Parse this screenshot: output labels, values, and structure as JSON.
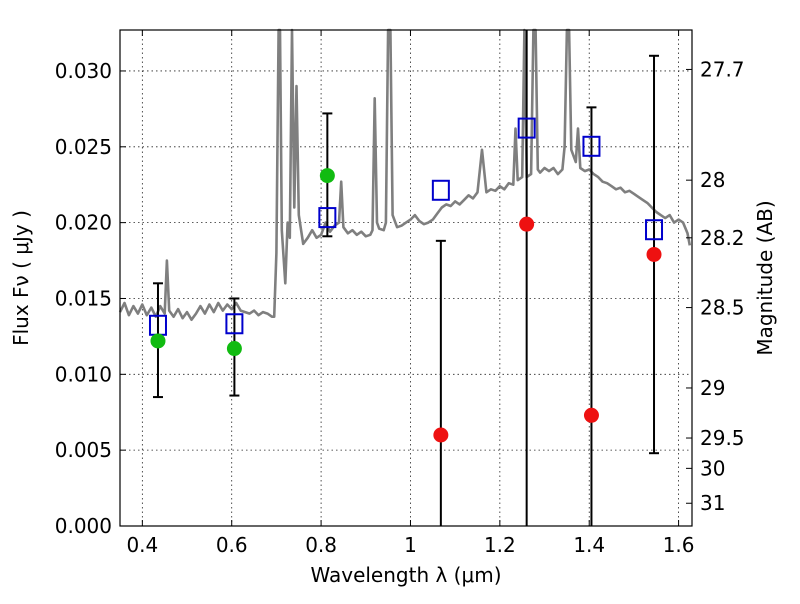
{
  "chart_data": {
    "type": "scatter",
    "xlabel": "Wavelength  λ (μm)",
    "ylabel": "Flux  Fν  ( μJy )",
    "ylabel_right": "Magnitude (AB)",
    "xlim": [
      0.35,
      1.63
    ],
    "ylim": [
      0.0,
      0.0327
    ],
    "grid": true,
    "x_ticks": [
      0.4,
      0.6,
      0.8,
      1.0,
      1.2,
      1.4,
      1.6
    ],
    "x_tick_labels": [
      "0.4",
      "0.6",
      "0.8",
      "1",
      "1.2",
      "1.4",
      "1.6"
    ],
    "y_ticks": [
      0.0,
      0.005,
      0.01,
      0.015,
      0.02,
      0.025,
      0.03
    ],
    "y_tick_labels": [
      "0.000",
      "0.005",
      "0.010",
      "0.015",
      "0.020",
      "0.025",
      "0.030"
    ],
    "right_ticks": [
      {
        "label": "27.7",
        "flux": 0.0301
      },
      {
        "label": "28",
        "flux": 0.0228
      },
      {
        "label": "28.2",
        "flux": 0.019
      },
      {
        "label": "28.5",
        "flux": 0.0144
      },
      {
        "label": "29",
        "flux": 0.0091
      },
      {
        "label": "29.5",
        "flux": 0.0058
      },
      {
        "label": "30",
        "flux": 0.0038
      },
      {
        "label": "31",
        "flux": 0.0015
      }
    ],
    "colors": {
      "spectrum": "#7f7f7f",
      "detection": "#11bb11",
      "non_detection": "#ee1111",
      "model_band": "#0000cc",
      "error_bar": "#000000"
    },
    "series": [
      {
        "kind": "observed",
        "color": "#11bb11",
        "points": [
          {
            "x": 0.435,
            "y": 0.0122,
            "err_low": 0.0085,
            "err_high": 0.016
          },
          {
            "x": 0.606,
            "y": 0.0117,
            "err_low": 0.0086,
            "err_high": 0.015
          },
          {
            "x": 0.814,
            "y": 0.0231,
            "err_low": 0.0191,
            "err_high": 0.0272
          }
        ]
      },
      {
        "kind": "observed",
        "color": "#ee1111",
        "points": [
          {
            "x": 1.068,
            "y": 0.006,
            "err_low": 0.0,
            "err_high": 0.0188
          },
          {
            "x": 1.26,
            "y": 0.0199,
            "err_low": 0.0,
            "err_high": 0.0327
          },
          {
            "x": 1.405,
            "y": 0.0073,
            "err_low": 0.0,
            "err_high": 0.0276
          },
          {
            "x": 1.545,
            "y": 0.0179,
            "err_low": 0.0048,
            "err_high": 0.031
          }
        ]
      },
      {
        "kind": "model_band",
        "color": "#0000cc",
        "points": [
          {
            "x": 0.435,
            "y": 0.0132
          },
          {
            "x": 0.606,
            "y": 0.0133
          },
          {
            "x": 0.814,
            "y": 0.0203
          },
          {
            "x": 1.068,
            "y": 0.0221
          },
          {
            "x": 1.26,
            "y": 0.0262
          },
          {
            "x": 1.405,
            "y": 0.025
          },
          {
            "x": 1.545,
            "y": 0.0195
          }
        ]
      },
      {
        "kind": "spectrum",
        "color": "#7f7f7f",
        "points": [
          [
            0.35,
            0.0141
          ],
          [
            0.36,
            0.0147
          ],
          [
            0.37,
            0.0139
          ],
          [
            0.38,
            0.0145
          ],
          [
            0.39,
            0.014
          ],
          [
            0.4,
            0.0146
          ],
          [
            0.41,
            0.0139
          ],
          [
            0.42,
            0.0144
          ],
          [
            0.43,
            0.0138
          ],
          [
            0.44,
            0.0145
          ],
          [
            0.45,
            0.014
          ],
          [
            0.455,
            0.0175
          ],
          [
            0.46,
            0.0142
          ],
          [
            0.47,
            0.0138
          ],
          [
            0.48,
            0.0143
          ],
          [
            0.49,
            0.0137
          ],
          [
            0.5,
            0.0141
          ],
          [
            0.51,
            0.0136
          ],
          [
            0.52,
            0.014
          ],
          [
            0.53,
            0.0145
          ],
          [
            0.54,
            0.014
          ],
          [
            0.55,
            0.0146
          ],
          [
            0.56,
            0.0141
          ],
          [
            0.57,
            0.0147
          ],
          [
            0.58,
            0.0142
          ],
          [
            0.59,
            0.0146
          ],
          [
            0.6,
            0.0143
          ],
          [
            0.61,
            0.0147
          ],
          [
            0.62,
            0.0142
          ],
          [
            0.63,
            0.0141
          ],
          [
            0.64,
            0.014
          ],
          [
            0.65,
            0.0142
          ],
          [
            0.66,
            0.0139
          ],
          [
            0.67,
            0.0141
          ],
          [
            0.68,
            0.014
          ],
          [
            0.69,
            0.0138
          ],
          [
            0.695,
            0.0138
          ],
          [
            0.7,
            0.018
          ],
          [
            0.705,
            0.0327
          ],
          [
            0.708,
            0.0327
          ],
          [
            0.712,
            0.0195
          ],
          [
            0.72,
            0.016
          ],
          [
            0.725,
            0.02
          ],
          [
            0.73,
            0.019
          ],
          [
            0.735,
            0.0327
          ],
          [
            0.74,
            0.021
          ],
          [
            0.745,
            0.029
          ],
          [
            0.75,
            0.0205
          ],
          [
            0.76,
            0.0186
          ],
          [
            0.77,
            0.019
          ],
          [
            0.78,
            0.0195
          ],
          [
            0.79,
            0.019
          ],
          [
            0.8,
            0.0192
          ],
          [
            0.81,
            0.02
          ],
          [
            0.82,
            0.0194
          ],
          [
            0.83,
            0.0198
          ],
          [
            0.84,
            0.02
          ],
          [
            0.845,
            0.0227
          ],
          [
            0.85,
            0.0197
          ],
          [
            0.86,
            0.0193
          ],
          [
            0.87,
            0.0195
          ],
          [
            0.88,
            0.0192
          ],
          [
            0.89,
            0.0194
          ],
          [
            0.9,
            0.0191
          ],
          [
            0.91,
            0.0192
          ],
          [
            0.915,
            0.0195
          ],
          [
            0.92,
            0.0282
          ],
          [
            0.925,
            0.02
          ],
          [
            0.93,
            0.0196
          ],
          [
            0.94,
            0.0195
          ],
          [
            0.945,
            0.02
          ],
          [
            0.95,
            0.0327
          ],
          [
            0.955,
            0.0327
          ],
          [
            0.96,
            0.0205
          ],
          [
            0.97,
            0.0197
          ],
          [
            0.98,
            0.0198
          ],
          [
            0.99,
            0.02
          ],
          [
            1.0,
            0.0202
          ],
          [
            1.01,
            0.0205
          ],
          [
            1.02,
            0.0201
          ],
          [
            1.03,
            0.0199
          ],
          [
            1.04,
            0.02
          ],
          [
            1.05,
            0.0202
          ],
          [
            1.06,
            0.0206
          ],
          [
            1.07,
            0.021
          ],
          [
            1.08,
            0.0212
          ],
          [
            1.09,
            0.0211
          ],
          [
            1.1,
            0.0214
          ],
          [
            1.11,
            0.0212
          ],
          [
            1.12,
            0.0215
          ],
          [
            1.13,
            0.0218
          ],
          [
            1.14,
            0.0216
          ],
          [
            1.15,
            0.022
          ],
          [
            1.16,
            0.0248
          ],
          [
            1.17,
            0.022
          ],
          [
            1.18,
            0.0222
          ],
          [
            1.19,
            0.0221
          ],
          [
            1.2,
            0.0224
          ],
          [
            1.21,
            0.0222
          ],
          [
            1.22,
            0.0226
          ],
          [
            1.23,
            0.0225
          ],
          [
            1.235,
            0.0262
          ],
          [
            1.24,
            0.0228
          ],
          [
            1.25,
            0.023
          ],
          [
            1.255,
            0.0327
          ],
          [
            1.26,
            0.023
          ],
          [
            1.27,
            0.0232
          ],
          [
            1.275,
            0.0327
          ],
          [
            1.28,
            0.0327
          ],
          [
            1.285,
            0.0235
          ],
          [
            1.29,
            0.0233
          ],
          [
            1.3,
            0.0236
          ],
          [
            1.31,
            0.0234
          ],
          [
            1.32,
            0.0236
          ],
          [
            1.33,
            0.0232
          ],
          [
            1.34,
            0.0235
          ],
          [
            1.345,
            0.025
          ],
          [
            1.35,
            0.0327
          ],
          [
            1.355,
            0.0327
          ],
          [
            1.36,
            0.0248
          ],
          [
            1.37,
            0.024
          ],
          [
            1.375,
            0.0262
          ],
          [
            1.38,
            0.0236
          ],
          [
            1.39,
            0.0234
          ],
          [
            1.4,
            0.0235
          ],
          [
            1.41,
            0.0232
          ],
          [
            1.42,
            0.023
          ],
          [
            1.43,
            0.0227
          ],
          [
            1.44,
            0.0226
          ],
          [
            1.45,
            0.0224
          ],
          [
            1.46,
            0.0222
          ],
          [
            1.47,
            0.0223
          ],
          [
            1.48,
            0.022
          ],
          [
            1.49,
            0.0221
          ],
          [
            1.5,
            0.0219
          ],
          [
            1.51,
            0.0217
          ],
          [
            1.52,
            0.0215
          ],
          [
            1.53,
            0.0213
          ],
          [
            1.54,
            0.021
          ],
          [
            1.55,
            0.0207
          ],
          [
            1.56,
            0.0205
          ],
          [
            1.57,
            0.0203
          ],
          [
            1.58,
            0.0205
          ],
          [
            1.59,
            0.02
          ],
          [
            1.6,
            0.0202
          ],
          [
            1.61,
            0.02
          ],
          [
            1.62,
            0.0193
          ],
          [
            1.625,
            0.0185
          ]
        ]
      }
    ]
  }
}
